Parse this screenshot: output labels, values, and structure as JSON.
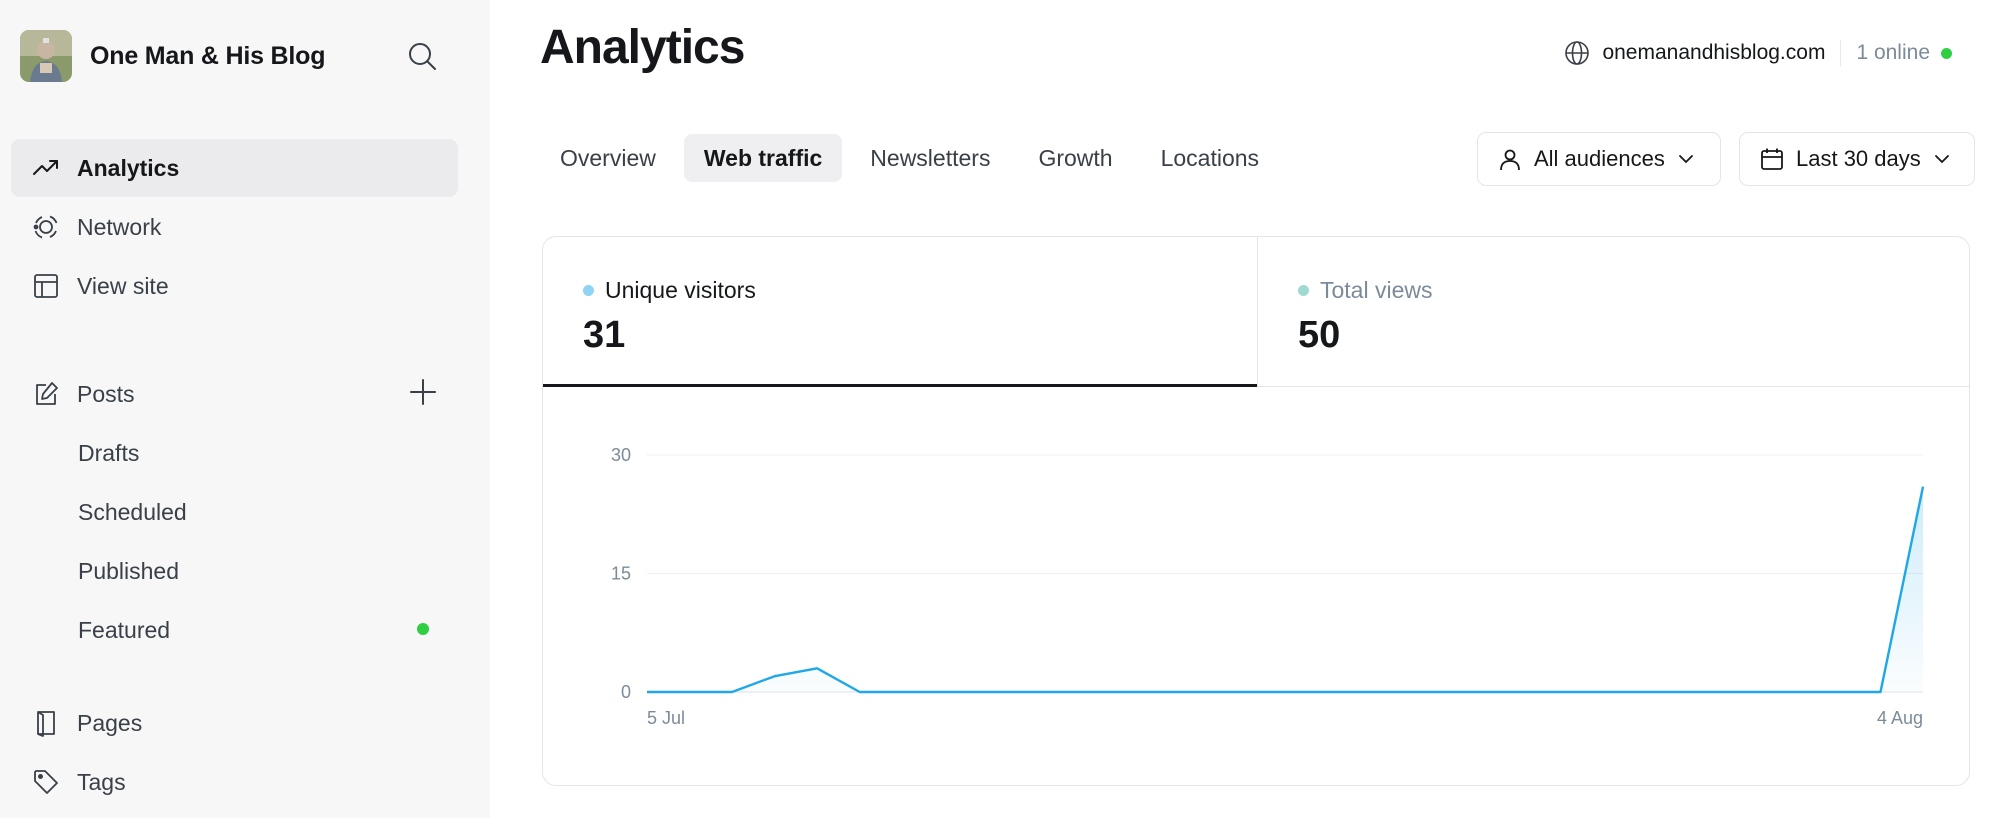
{
  "sidebar": {
    "blog_name": "One Man & His Blog",
    "nav": [
      {
        "label": "Analytics",
        "icon": "trending-up-icon",
        "active": true
      },
      {
        "label": "Network",
        "icon": "network-icon"
      },
      {
        "label": "View site",
        "icon": "layout-icon"
      }
    ],
    "posts": {
      "label": "Posts",
      "icon": "edit-icon",
      "children": [
        {
          "label": "Drafts"
        },
        {
          "label": "Scheduled"
        },
        {
          "label": "Published"
        },
        {
          "label": "Featured"
        }
      ]
    },
    "more": [
      {
        "label": "Pages",
        "icon": "book-icon"
      },
      {
        "label": "Tags",
        "icon": "tag-icon"
      }
    ]
  },
  "header": {
    "title": "Analytics",
    "site_url": "onemanandhisblog.com",
    "online": "1 online"
  },
  "tabs": [
    {
      "label": "Overview"
    },
    {
      "label": "Web traffic",
      "active": true
    },
    {
      "label": "Newsletters"
    },
    {
      "label": "Growth"
    },
    {
      "label": "Locations"
    }
  ],
  "filters": {
    "audience": "All audiences",
    "range": "Last 30 days"
  },
  "kpis": [
    {
      "label": "Unique visitors",
      "value": "31",
      "color": "#8fd4f4"
    },
    {
      "label": "Total views",
      "value": "50",
      "color": "#9fd9d2"
    }
  ],
  "colors": {
    "line": "#1fa7e8",
    "online_dot": "#30cf43"
  },
  "chart_data": {
    "type": "area",
    "x": [
      "5 Jul",
      "6 Jul",
      "7 Jul",
      "8 Jul",
      "9 Jul",
      "10 Jul",
      "11 Jul",
      "12 Jul",
      "13 Jul",
      "14 Jul",
      "15 Jul",
      "16 Jul",
      "17 Jul",
      "18 Jul",
      "19 Jul",
      "20 Jul",
      "21 Jul",
      "22 Jul",
      "23 Jul",
      "24 Jul",
      "25 Jul",
      "26 Jul",
      "27 Jul",
      "28 Jul",
      "29 Jul",
      "30 Jul",
      "31 Jul",
      "1 Aug",
      "2 Aug",
      "3 Aug",
      "4 Aug"
    ],
    "x_tick_labels": [
      "5 Jul",
      "4 Aug"
    ],
    "series": [
      {
        "values": [
          0,
          0,
          0,
          2,
          3,
          0,
          0,
          0,
          0,
          0,
          0,
          0,
          0,
          0,
          0,
          0,
          0,
          0,
          0,
          0,
          0,
          0,
          0,
          0,
          0,
          0,
          0,
          0,
          0,
          0,
          26
        ]
      }
    ],
    "yticks": [
      0,
      15,
      30
    ],
    "ylim": [
      0,
      30
    ],
    "grid": true
  }
}
